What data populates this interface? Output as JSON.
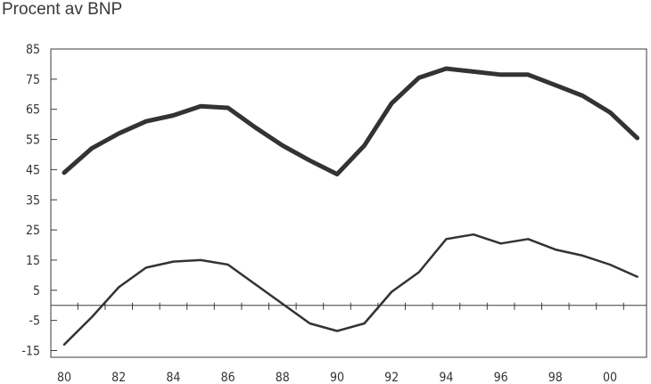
{
  "chart_data": {
    "type": "line",
    "title": "",
    "ylabel": "Procent av BNP",
    "xlabel": "",
    "x": [
      "80",
      "81",
      "82",
      "83",
      "84",
      "85",
      "86",
      "87",
      "88",
      "89",
      "90",
      "91",
      "92",
      "93",
      "94",
      "95",
      "96",
      "97",
      "98",
      "99",
      "00",
      "01"
    ],
    "x_tick_labels": [
      "80",
      "82",
      "84",
      "86",
      "88",
      "90",
      "92",
      "94",
      "96",
      "98",
      "00"
    ],
    "y_ticks": [
      85,
      75,
      65,
      55,
      45,
      35,
      25,
      15,
      5,
      -5,
      -15
    ],
    "ylim": [
      -15,
      85
    ],
    "grid": false,
    "legend": "none",
    "series": [
      {
        "values": [
          44,
          52,
          57,
          61,
          63,
          66,
          65.5,
          59,
          53,
          48,
          43.5,
          53,
          67,
          75.5,
          78.5,
          77.5,
          76.5,
          76.5,
          73,
          69.5,
          64,
          55.5
        ],
        "color": "#333333",
        "line_width": 5
      },
      {
        "values": [
          -13,
          -4,
          6,
          12.5,
          14.5,
          15,
          13.5,
          7,
          0.5,
          -6,
          -8.5,
          -6,
          4.5,
          11,
          22,
          23.5,
          20.5,
          22,
          18.5,
          16.5,
          13.5,
          9.5
        ],
        "color": "#333333",
        "line_width": 2.5
      }
    ]
  }
}
